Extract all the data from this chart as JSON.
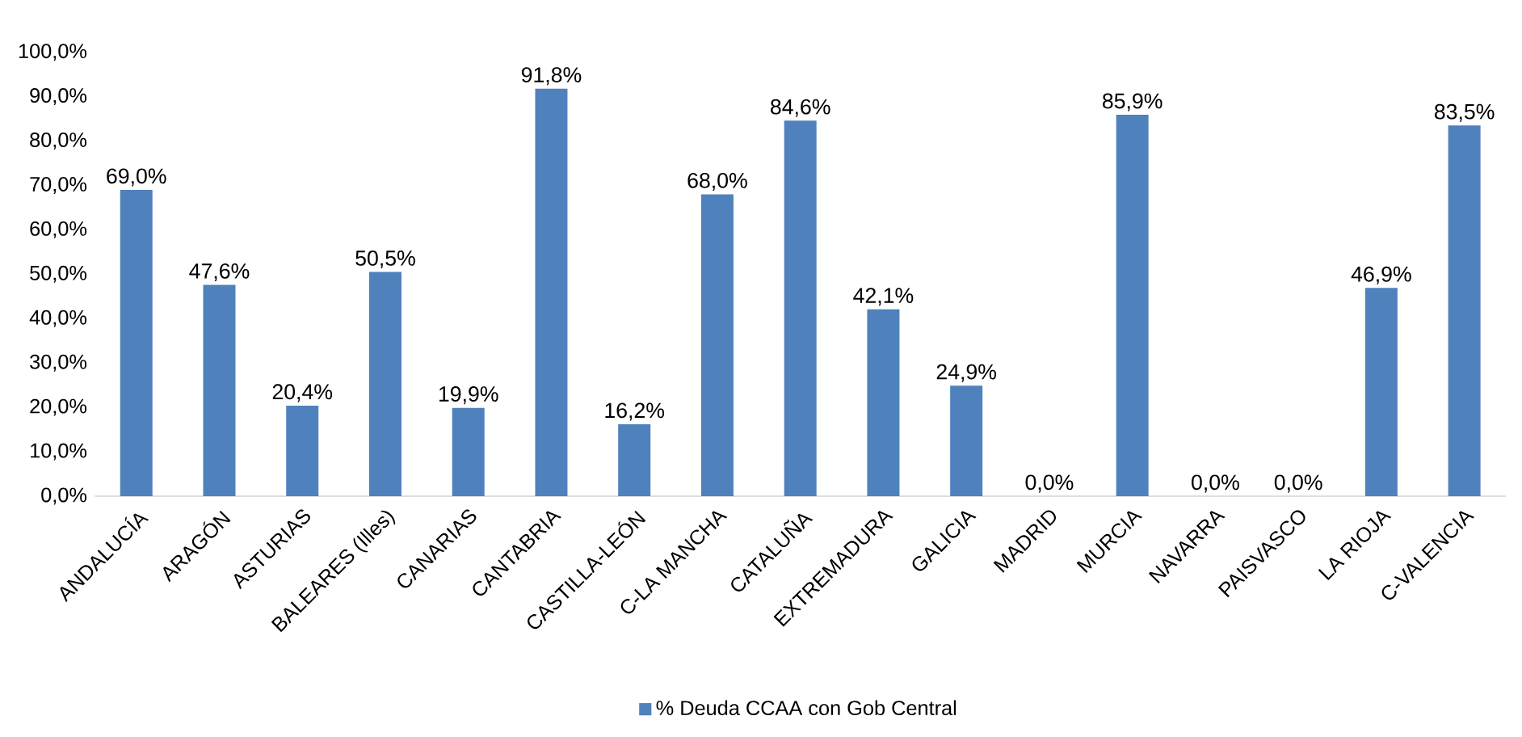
{
  "chart_data": {
    "type": "bar",
    "categories": [
      "ANDALUCÍA",
      "ARAGÓN",
      "ASTURIAS",
      "BALEARES (Illes)",
      "CANARIAS",
      "CANTABRIA",
      "CASTILLA-LEÓN",
      "C-LA MANCHA",
      "CATALUÑA",
      "EXTREMADURA",
      "GALICIA",
      "MADRID",
      "MURCIA",
      "NAVARRA",
      "PAISVASCO",
      "LA RIOJA",
      "C-VALENCIA"
    ],
    "series": [
      {
        "name": "% Deuda CCAA con Gob Central",
        "color": "#4f81bd",
        "values": [
          69.0,
          47.6,
          20.4,
          50.5,
          19.9,
          91.8,
          16.2,
          68.0,
          84.6,
          42.1,
          24.9,
          0.0,
          85.9,
          0.0,
          0.0,
          46.9,
          83.5
        ],
        "value_labels": [
          "69,0%",
          "47,6%",
          "20,4%",
          "50,5%",
          "19,9%",
          "91,8%",
          "16,2%",
          "68,0%",
          "84,6%",
          "42,1%",
          "24,9%",
          "0,0%",
          "85,9%",
          "0,0%",
          "0,0%",
          "46,9%",
          "83,5%"
        ]
      }
    ],
    "ylim": [
      0,
      100
    ],
    "yticks": [
      {
        "value": 0,
        "label": "0,0%"
      },
      {
        "value": 10,
        "label": "10,0%"
      },
      {
        "value": 20,
        "label": "20,0%"
      },
      {
        "value": 30,
        "label": "30,0%"
      },
      {
        "value": 40,
        "label": "40,0%"
      },
      {
        "value": 50,
        "label": "50,0%"
      },
      {
        "value": 60,
        "label": "60,0%"
      },
      {
        "value": 70,
        "label": "70,0%"
      },
      {
        "value": 80,
        "label": "80,0%"
      },
      {
        "value": 90,
        "label": "90,0%"
      },
      {
        "value": 100,
        "label": "100,0%"
      }
    ],
    "legend": "bottom"
  }
}
